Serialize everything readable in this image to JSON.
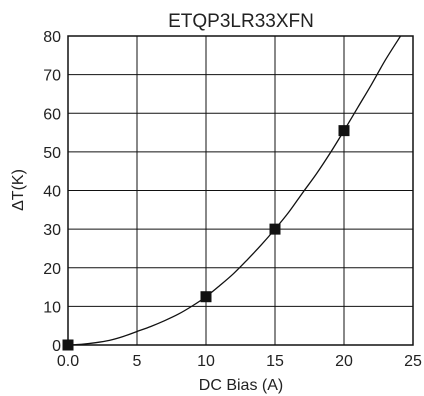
{
  "chart_data": {
    "type": "line",
    "title": "ETQP3LR33XFN",
    "xlabel": "DC Bias (A)",
    "ylabel": "ΔT(K)",
    "xlim": [
      0,
      25
    ],
    "ylim": [
      0,
      80
    ],
    "x_ticks": [
      0,
      5,
      10,
      15,
      20,
      25
    ],
    "x_tick_labels": [
      "0.0",
      "5",
      "10",
      "15",
      "20",
      "25"
    ],
    "y_ticks": [
      0,
      10,
      20,
      30,
      40,
      50,
      60,
      70,
      80
    ],
    "y_tick_labels": [
      "0",
      "10",
      "20",
      "30",
      "40",
      "50",
      "60",
      "70",
      "80"
    ],
    "grid": true,
    "series": [
      {
        "curve": {
          "x": [
            0,
            1,
            2,
            3,
            4,
            5,
            6,
            7,
            8,
            9,
            10,
            11,
            12,
            13,
            14,
            15,
            16,
            17,
            18,
            19,
            20,
            21,
            22,
            23,
            24.1
          ],
          "y": [
            0,
            0.2,
            0.6,
            1.2,
            2.2,
            3.5,
            4.8,
            6.3,
            8.0,
            10.1,
            12.5,
            15.4,
            18.5,
            22.1,
            25.9,
            30.0,
            34.4,
            39.4,
            44.3,
            49.7,
            55.5,
            61.5,
            67.5,
            73.8,
            80.0
          ],
          "color": "#111111"
        },
        "markers": {
          "x": [
            0,
            10,
            15,
            20
          ],
          "y": [
            0,
            12.5,
            30,
            55.5
          ],
          "shape": "square",
          "color": "#111111"
        }
      }
    ]
  }
}
